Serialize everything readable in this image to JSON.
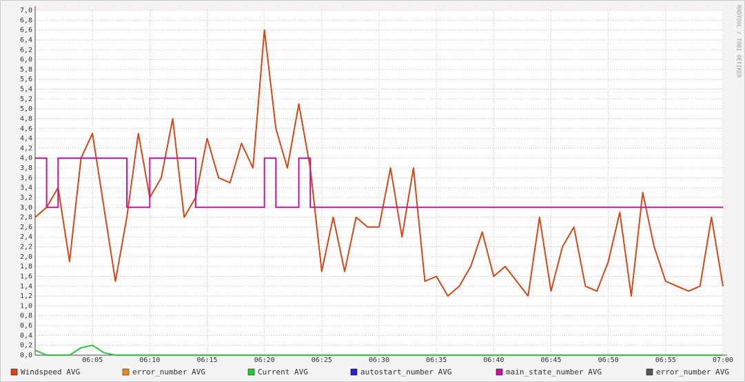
{
  "chart_data": {
    "type": "line",
    "watermark": "RRDTOOL / TOBI OETIKER",
    "x": [
      "06:00",
      "06:01",
      "06:02",
      "06:03",
      "06:04",
      "06:05",
      "06:06",
      "06:07",
      "06:08",
      "06:09",
      "06:10",
      "06:11",
      "06:12",
      "06:13",
      "06:14",
      "06:15",
      "06:16",
      "06:17",
      "06:18",
      "06:19",
      "06:20",
      "06:21",
      "06:22",
      "06:23",
      "06:24",
      "06:25",
      "06:26",
      "06:27",
      "06:28",
      "06:29",
      "06:30",
      "06:31",
      "06:32",
      "06:33",
      "06:34",
      "06:35",
      "06:36",
      "06:37",
      "06:38",
      "06:39",
      "06:40",
      "06:41",
      "06:42",
      "06:43",
      "06:44",
      "06:45",
      "06:46",
      "06:47",
      "06:48",
      "06:49",
      "06:50",
      "06:51",
      "06:52",
      "06:53",
      "06:54",
      "06:55",
      "06:56",
      "06:57",
      "06:58",
      "06:59",
      "07:00"
    ],
    "xlim": [
      "06:00",
      "07:00"
    ],
    "xticks": [
      "06:05",
      "06:10",
      "06:15",
      "06:20",
      "06:25",
      "06:30",
      "06:35",
      "06:40",
      "06:45",
      "06:50",
      "06:55",
      "07:00"
    ],
    "ylim": [
      0,
      7
    ],
    "yticks": [
      {
        "value": 0,
        "label": "0,0"
      },
      {
        "value": 0.2,
        "label": "0,2"
      },
      {
        "value": 0.4,
        "label": "0,4"
      },
      {
        "value": 0.6,
        "label": "0,6"
      },
      {
        "value": 0.8,
        "label": "0,8"
      },
      {
        "value": 1,
        "label": "1,0"
      },
      {
        "value": 1.2,
        "label": "1,2"
      },
      {
        "value": 1.4,
        "label": "1,4"
      },
      {
        "value": 1.6,
        "label": "1,6"
      },
      {
        "value": 1.8,
        "label": "1,8"
      },
      {
        "value": 2,
        "label": "2,0"
      },
      {
        "value": 2.2,
        "label": "2,2"
      },
      {
        "value": 2.4,
        "label": "2,4"
      },
      {
        "value": 2.6,
        "label": "2,6"
      },
      {
        "value": 2.8,
        "label": "2,8"
      },
      {
        "value": 3,
        "label": "3,0"
      },
      {
        "value": 3.2,
        "label": "3,2"
      },
      {
        "value": 3.4,
        "label": "3,4"
      },
      {
        "value": 3.6,
        "label": "3,6"
      },
      {
        "value": 3.8,
        "label": "3,8"
      },
      {
        "value": 4,
        "label": "4,0"
      },
      {
        "value": 4.2,
        "label": "4,2"
      },
      {
        "value": 4.4,
        "label": "4,4"
      },
      {
        "value": 4.6,
        "label": "4,6"
      },
      {
        "value": 4.8,
        "label": "4,8"
      },
      {
        "value": 5,
        "label": "5,0"
      },
      {
        "value": 5.2,
        "label": "5,2"
      },
      {
        "value": 5.4,
        "label": "5,4"
      },
      {
        "value": 5.6,
        "label": "5,6"
      },
      {
        "value": 5.8,
        "label": "5,8"
      },
      {
        "value": 6,
        "label": "6,0"
      },
      {
        "value": 6.2,
        "label": "6,2"
      },
      {
        "value": 6.4,
        "label": "6,4"
      },
      {
        "value": 6.6,
        "label": "6,6"
      },
      {
        "value": 6.8,
        "label": "6,8"
      },
      {
        "value": 7,
        "label": "7,0"
      }
    ],
    "grid": true,
    "series": [
      {
        "name": "Windspeed AVG",
        "color": "#dd4411",
        "values": [
          2.8,
          3.0,
          3.4,
          1.9,
          4.0,
          4.5,
          3.0,
          1.5,
          2.8,
          4.5,
          3.2,
          3.6,
          4.8,
          2.8,
          3.2,
          4.4,
          3.6,
          3.5,
          4.3,
          3.8,
          6.6,
          4.6,
          3.8,
          5.1,
          3.8,
          1.7,
          2.8,
          1.7,
          2.8,
          2.6,
          2.6,
          3.8,
          2.4,
          3.8,
          1.5,
          1.6,
          1.2,
          1.4,
          1.8,
          2.5,
          1.6,
          1.8,
          1.5,
          1.2,
          2.8,
          1.3,
          2.2,
          2.6,
          1.4,
          1.3,
          1.9,
          2.9,
          1.2,
          3.3,
          2.2,
          1.5,
          1.4,
          1.3,
          1.4,
          2.8,
          1.4
        ]
      },
      {
        "name": "error_number AVG",
        "color": "#ee8822",
        "values": [
          null,
          null,
          null,
          null,
          null,
          null,
          null,
          null,
          null,
          null,
          null,
          null,
          null,
          null,
          null,
          null,
          null,
          null,
          null,
          null,
          null,
          null,
          null,
          null,
          null,
          null,
          null,
          null,
          null,
          null,
          null,
          null,
          null,
          null,
          null,
          null,
          null,
          null,
          null,
          null,
          null,
          null,
          null,
          null,
          null,
          null,
          null,
          null,
          null,
          null,
          null,
          null,
          null,
          null,
          null,
          null,
          null,
          null,
          null,
          null,
          null
        ]
      },
      {
        "name": "Current AVG",
        "color": "#22cc33",
        "values": [
          0.1,
          0,
          0,
          0,
          0.15,
          0.2,
          0.05,
          0,
          0,
          0,
          0,
          0,
          0,
          0,
          0,
          0,
          0,
          0,
          0,
          0,
          0,
          0,
          0,
          0,
          0,
          0,
          0,
          0,
          0,
          0,
          0,
          0,
          0,
          0,
          0,
          0,
          0,
          0,
          0,
          0,
          0,
          0,
          0,
          0,
          0,
          0,
          0,
          0,
          0,
          0,
          0,
          0,
          0,
          0,
          0,
          0,
          0,
          0,
          0,
          0,
          0
        ]
      },
      {
        "name": "autostart_number AVG",
        "color": "#2222dd",
        "values": [
          null,
          null,
          null,
          null,
          null,
          null,
          null,
          null,
          null,
          null,
          null,
          null,
          null,
          null,
          null,
          null,
          null,
          null,
          null,
          null,
          null,
          null,
          null,
          null,
          null,
          null,
          null,
          null,
          null,
          null,
          null,
          null,
          null,
          null,
          null,
          null,
          null,
          null,
          null,
          null,
          null,
          null,
          null,
          null,
          null,
          null,
          null,
          null,
          null,
          null,
          null,
          null,
          null,
          null,
          null,
          null,
          null,
          null,
          null,
          null,
          null
        ]
      },
      {
        "name": "main_state_number AVG",
        "color": "#cc1199",
        "step": true,
        "values": [
          4,
          3,
          4,
          4,
          4,
          4,
          4,
          4,
          3,
          3,
          4,
          4,
          4,
          4,
          3,
          3,
          3,
          3,
          3,
          3,
          4,
          3,
          3,
          4,
          3,
          3,
          3,
          3,
          3,
          3,
          3,
          3,
          3,
          3,
          3,
          3,
          3,
          3,
          3,
          3,
          3,
          3,
          3,
          3,
          3,
          3,
          3,
          3,
          3,
          3,
          3,
          3,
          3,
          3,
          3,
          3,
          3,
          3,
          3,
          3,
          3
        ]
      },
      {
        "name": "error_number AVG",
        "color": "#555555",
        "values": [
          null,
          null,
          null,
          null,
          null,
          null,
          null,
          null,
          null,
          null,
          null,
          null,
          null,
          null,
          null,
          null,
          null,
          null,
          null,
          null,
          null,
          null,
          null,
          null,
          null,
          null,
          null,
          null,
          null,
          null,
          null,
          null,
          null,
          null,
          null,
          null,
          null,
          null,
          null,
          null,
          null,
          null,
          null,
          null,
          null,
          null,
          null,
          null,
          null,
          null,
          null,
          null,
          null,
          null,
          null,
          null,
          null,
          null,
          null,
          null,
          null
        ]
      }
    ]
  }
}
